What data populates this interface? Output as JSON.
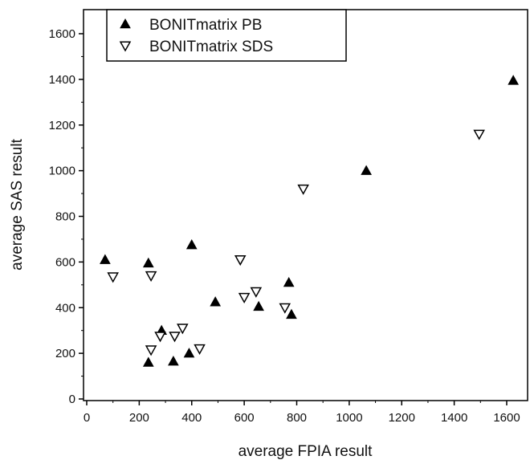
{
  "chart_data": {
    "type": "scatter",
    "title": "",
    "xlabel": "average FPIA result",
    "ylabel": "average SAS result",
    "xlim": [
      0,
      1700
    ],
    "ylim": [
      0,
      1700
    ],
    "xticks": [
      0,
      200,
      400,
      600,
      800,
      1000,
      1200,
      1400,
      1600
    ],
    "yticks": [
      0,
      200,
      400,
      600,
      800,
      1000,
      1200,
      1400,
      1600
    ],
    "grid": false,
    "legend_position": "top-left",
    "series": [
      {
        "name": "BONITmatrix PB",
        "marker": "filled-triangle-up",
        "color": "#000000",
        "points": [
          [
            70,
            610
          ],
          [
            235,
            595
          ],
          [
            400,
            675
          ],
          [
            490,
            425
          ],
          [
            655,
            405
          ],
          [
            770,
            510
          ],
          [
            780,
            370
          ],
          [
            1065,
            1000
          ],
          [
            1625,
            1395
          ],
          [
            235,
            160
          ],
          [
            285,
            300
          ],
          [
            330,
            165
          ],
          [
            390,
            200
          ]
        ]
      },
      {
        "name": "BONITmatrix SDS",
        "marker": "open-triangle-down",
        "color": "#000000",
        "points": [
          [
            100,
            535
          ],
          [
            245,
            540
          ],
          [
            585,
            610
          ],
          [
            600,
            445
          ],
          [
            645,
            470
          ],
          [
            755,
            400
          ],
          [
            825,
            920
          ],
          [
            1495,
            1160
          ],
          [
            245,
            215
          ],
          [
            280,
            275
          ],
          [
            335,
            275
          ],
          [
            365,
            310
          ],
          [
            430,
            220
          ]
        ]
      }
    ]
  }
}
